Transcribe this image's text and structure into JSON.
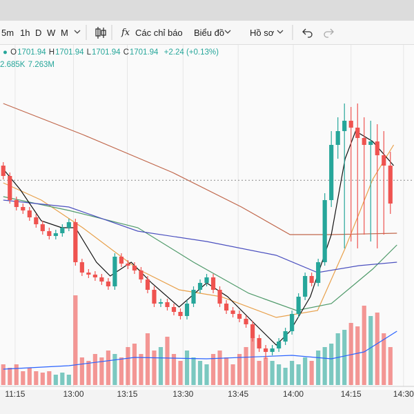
{
  "toolbar": {
    "intervals": [
      "5m",
      "1h",
      "D",
      "W",
      "M"
    ],
    "indicators_icon": "fx",
    "indicators": "Các chỉ báo",
    "chart": "Biểu đồ",
    "profile": "Hồ sơ"
  },
  "legend": {
    "ohlc": [
      {
        "key": "O",
        "value": 1701.94
      },
      {
        "key": "H",
        "value": 1701.94
      },
      {
        "key": "L",
        "value": 1701.94
      },
      {
        "key": "C",
        "value": 1701.94
      }
    ],
    "change": "+2.24 (+0.13%)",
    "volume": [
      "2.685K",
      "7.263M"
    ]
  },
  "chart_data": {
    "type": "candlestick",
    "open": [
      1703,
      1702.25,
      1700.5,
      1700,
      1699.75,
      1699.25,
      1698.75,
      1698.25,
      1697.9,
      1698.1,
      1698.5,
      1698.9,
      1696,
      1695.25,
      1695.1,
      1694.9,
      1694.6,
      1694.25,
      1696.4,
      1695.9,
      1695.75,
      1695.4,
      1694.75,
      1694,
      1693,
      1693.1,
      1692.75,
      1692.4,
      1692.1,
      1693,
      1694,
      1694.5,
      1694.9,
      1694,
      1693,
      1692.5,
      1692.25,
      1691.9,
      1691.5,
      1690.5,
      1689.75,
      1689.5,
      1689.75,
      1690.25,
      1691,
      1692.25,
      1693.5,
      1695,
      1694.5,
      1696,
      1700.5,
      1704.5,
      1705.5,
      1706.25,
      1705.75,
      1705,
      1704.5,
      1704.75,
      1703.75,
      1703
    ],
    "high": [
      1703.25,
      1702.5,
      1700.75,
      1700.25,
      1700,
      1699.5,
      1699,
      1698.5,
      1698.35,
      1698.75,
      1699.15,
      1699.15,
      1696.25,
      1695.5,
      1695.35,
      1695.15,
      1694.85,
      1696.65,
      1696.65,
      1696.15,
      1696,
      1695.65,
      1695,
      1694.25,
      1693.35,
      1693.35,
      1693,
      1692.65,
      1693.25,
      1694.25,
      1694.75,
      1695.15,
      1695.15,
      1694.25,
      1693.25,
      1692.75,
      1692.5,
      1692.15,
      1691.75,
      1690.75,
      1690,
      1690,
      1690.5,
      1691.25,
      1692.5,
      1693.75,
      1695.25,
      1695.25,
      1696.25,
      1701,
      1705.5,
      1706.5,
      1707.5,
      1707.25,
      1707.5,
      1706.5,
      1706.25,
      1706,
      1705.5,
      1704
    ],
    "low": [
      1702,
      1700.25,
      1699.75,
      1699.5,
      1699,
      1698.5,
      1698,
      1697.65,
      1697.65,
      1697.85,
      1698.25,
      1695.75,
      1695,
      1694.85,
      1694.65,
      1694.35,
      1694,
      1694,
      1695.65,
      1695.5,
      1695.15,
      1694.5,
      1693.75,
      1692.75,
      1692.75,
      1692.5,
      1692.15,
      1691.85,
      1691.85,
      1692.75,
      1693.75,
      1694.25,
      1693.75,
      1692.75,
      1692.25,
      1692,
      1691.65,
      1691.25,
      1690.25,
      1689.5,
      1689,
      1689.25,
      1689.5,
      1690,
      1690.75,
      1692,
      1693.25,
      1694.25,
      1694.25,
      1695.75,
      1700,
      1703.5,
      1697,
      1697.5,
      1697,
      1698,
      1697.5,
      1697,
      1698,
      1699.5
    ],
    "close": [
      1702.25,
      1700.5,
      1700,
      1699.75,
      1699.25,
      1698.75,
      1698.25,
      1697.9,
      1698.1,
      1698.5,
      1698.9,
      1696,
      1695.25,
      1695.1,
      1694.9,
      1694.6,
      1694.25,
      1696.4,
      1695.9,
      1695.75,
      1695.4,
      1694.75,
      1694,
      1693,
      1693.1,
      1692.75,
      1692.4,
      1692.1,
      1693,
      1694,
      1694.5,
      1694.9,
      1694,
      1693,
      1692.5,
      1692.25,
      1691.9,
      1691.5,
      1690.5,
      1689.75,
      1689.5,
      1689.75,
      1690.25,
      1691,
      1692.25,
      1693.5,
      1695,
      1694.5,
      1696,
      1700.5,
      1704.5,
      1705.5,
      1706.25,
      1705.75,
      1705,
      1704.5,
      1704.75,
      1703.75,
      1703,
      1700.25
    ],
    "volume": [
      30,
      25,
      30,
      20,
      25,
      20,
      18,
      20,
      15,
      18,
      15,
      130,
      40,
      35,
      45,
      40,
      50,
      45,
      40,
      55,
      60,
      45,
      75,
      50,
      55,
      70,
      45,
      35,
      50,
      40,
      35,
      30,
      45,
      50,
      40,
      30,
      45,
      55,
      70,
      35,
      40,
      35,
      30,
      25,
      35,
      30,
      40,
      35,
      50,
      55,
      60,
      75,
      80,
      90,
      85,
      115,
      100,
      105,
      75,
      55
    ],
    "up_color": "#26a69a",
    "down_color": "#ef5350",
    "ylim": [
      1687,
      1712
    ],
    "volume_lim": [
      0,
      200
    ],
    "xlim": [
      -0.5,
      62.6
    ],
    "xticks": [
      {
        "value": 1.8,
        "label": "11:15"
      },
      {
        "value": 10.7,
        "label": "13:00"
      },
      {
        "value": 18.9,
        "label": "13:15"
      },
      {
        "value": 27.4,
        "label": "13:30"
      },
      {
        "value": 35.8,
        "label": "13:45"
      },
      {
        "value": 44.2,
        "label": "14:00"
      },
      {
        "value": 53,
        "label": "14:15"
      },
      {
        "value": 61,
        "label": "14:30"
      }
    ],
    "grid": true,
    "moving_averages": [
      {
        "color": "#c0664a",
        "x": [
          0,
          12.1,
          25.8,
          36.3,
          43.7,
          50,
          60
        ],
        "values": [
          1707.5,
          1705.25,
          1702.5,
          1700,
          1698,
          1698,
          1698.1
        ]
      },
      {
        "color": "#e8a04a",
        "x": [
          0,
          5.8,
          12.1,
          20.5,
          26.8,
          33.2,
          41.6,
          47.9,
          52.1,
          56.3,
          59.5
        ],
        "values": [
          1701.75,
          1700.5,
          1698.5,
          1695.5,
          1694,
          1693.5,
          1692,
          1692.5,
          1697,
          1702,
          1704.5
        ]
      },
      {
        "color": "#4f9a6a",
        "x": [
          0,
          10,
          20.5,
          29,
          37.4,
          44.7,
          50,
          56.3,
          60
        ],
        "values": [
          1700.75,
          1699.75,
          1698.5,
          1696,
          1693.75,
          1692.5,
          1693,
          1695.5,
          1697.25
        ]
      },
      {
        "color": "#4a4fbf",
        "x": [
          0,
          10,
          20.5,
          31,
          41.6,
          47.9,
          54.2,
          60
        ],
        "values": [
          1700.5,
          1700,
          1698.25,
          1697.5,
          1696.5,
          1695.25,
          1695.75,
          1696
        ]
      },
      {
        "color": "#111111",
        "x": [
          0,
          2.6,
          5.8,
          8.9,
          11,
          14.2,
          16.3,
          19.5,
          22.6,
          26.8,
          31,
          34.2,
          38.4,
          41.6,
          43.7,
          46.8,
          50,
          52.1,
          53.7,
          56.3,
          59.5
        ],
        "values": [
          1702.75,
          1701.25,
          1699,
          1698.5,
          1698.5,
          1696,
          1695,
          1696,
          1694.5,
          1692.75,
          1694.5,
          1693.5,
          1691.5,
          1690,
          1691,
          1693.5,
          1698,
          1703.5,
          1705.5,
          1704.75,
          1703
        ]
      }
    ],
    "volume_ma": {
      "color": "#2962ff",
      "x": [
        0,
        10,
        20,
        31,
        44,
        50,
        55,
        60
      ],
      "values": [
        23,
        28,
        40,
        38,
        43,
        38,
        48,
        78
      ]
    }
  }
}
